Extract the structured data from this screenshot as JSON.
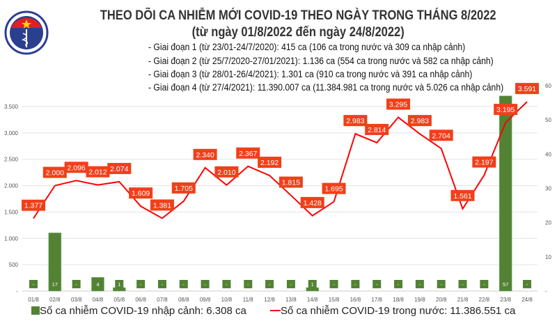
{
  "header": {
    "title": "THEO DÕI CA NHIỄM MỚI COVID-19 THEO NGÀY TRONG THÁNG 8/2022",
    "subtitle": "(từ ngày 01/8/2022 đến ngày 24/8/2022)",
    "stages": [
      "- Giai đoạn 1 (từ 23/01-24/7/2020): 415 ca (106 ca trong nước và 309 ca nhập cảnh)",
      "- Giai đoạn 2 (từ 25/7/2020-27/01/2021): 1.136 ca (554 ca trong nước và 582 ca nhập cảnh)",
      "- Giai đoạn 3 (từ 28/01-26/4/2021): 1.301 ca (910 ca trong nước và 391 ca nhập cảnh)",
      "- Giai đoạn 4 (từ 27/4/2021): 11.390.007 ca (11.384.981 ca trong nước và 5.026 ca nhập cảnh)"
    ],
    "logo_text": "BỘ Y TẾ MINISTRY OF HEALTH"
  },
  "chart_data": {
    "type": "bar+line",
    "categories": [
      "01/8",
      "02/8",
      "03/8",
      "04/8",
      "05/8",
      "06/8",
      "07/8",
      "08/8",
      "09/8",
      "10/8",
      "11/8",
      "12/8",
      "13/8",
      "14/8",
      "15/8",
      "16/8",
      "17/8",
      "18/8",
      "19/8",
      "20/8",
      "21/8",
      "22/8",
      "23/8",
      "24/8"
    ],
    "series": [
      {
        "name": "Số ca nhiễm COVID-19 nhập cảnh: 6.308 ca",
        "type": "bar",
        "axis": "right",
        "color": "#548235",
        "values": [
          0,
          17,
          0,
          4,
          1,
          0,
          0,
          0,
          0,
          0,
          0,
          0,
          0,
          1,
          0,
          0,
          0,
          0,
          0,
          0,
          0,
          0,
          57,
          0
        ],
        "labels": [
          "-",
          "17",
          "-",
          "4",
          "1",
          "-",
          "-",
          "-",
          "-",
          "-",
          "-",
          "-",
          "-",
          "1",
          "-",
          "-",
          "-",
          "-",
          "-",
          "-",
          "-",
          "-",
          "57",
          "-"
        ]
      },
      {
        "name": "Số ca nhiễm COVID-19 trong nước: 11.386.551 ca",
        "type": "line",
        "axis": "left",
        "color": "#ff0000",
        "values": [
          1377,
          2000,
          2096,
          2012,
          2074,
          1609,
          1381,
          1705,
          2340,
          2010,
          2367,
          2192,
          1815,
          1428,
          1695,
          2983,
          2814,
          3295,
          2983,
          2704,
          1561,
          2197,
          3195,
          3591
        ],
        "labels": [
          "1.377",
          "2.000",
          "2.096",
          "2.012",
          "2.074",
          "1.609",
          "1.381",
          "1.705",
          "2.340",
          "2.010",
          "2.367",
          "2.192",
          "1.815",
          "1.428",
          "1.695",
          "2.983",
          "2.814",
          "3.295",
          "2.983",
          "2.704",
          "1.561",
          "2.197",
          "3.195",
          "3.591"
        ]
      }
    ],
    "left_axis": {
      "range": [
        0,
        3500
      ],
      "ticks": [
        "-",
        "500",
        "1.000",
        "1.500",
        "2.000",
        "2.500",
        "3.000",
        "3.500"
      ]
    },
    "right_axis": {
      "range": [
        0,
        60
      ],
      "ticks": [
        "-",
        "10",
        "20",
        "30",
        "40",
        "50",
        "60"
      ]
    },
    "grid": true,
    "legend_placement": "bottom",
    "label_bg_color": "#f0401a"
  }
}
